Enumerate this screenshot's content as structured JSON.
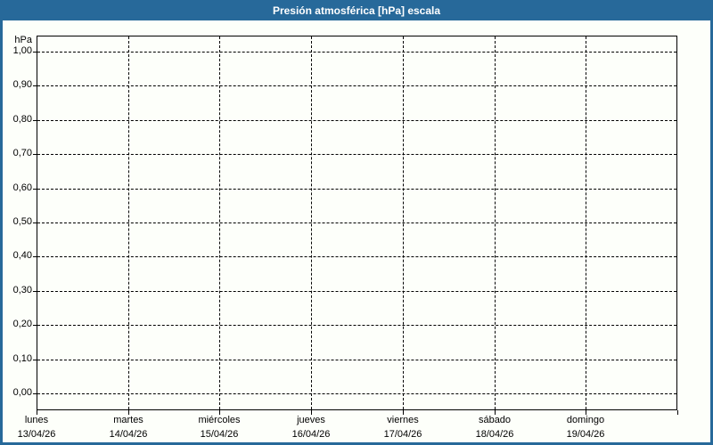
{
  "header": {
    "title": "Presión atmosférica [hPa] escala"
  },
  "colors": {
    "titlebar_background": "#27699A",
    "titlebar_text": "#FFFFFF",
    "panel_border": "#27699A",
    "page_background": "#FDFFFA",
    "grid": "#000000",
    "axis": "#000000",
    "label_text": "#000000"
  },
  "y_axis": {
    "unit": "hPa",
    "tick_labels": [
      "1,00",
      "0,90",
      "0,80",
      "0,70",
      "0,60",
      "0,50",
      "0,40",
      "0,30",
      "0,20",
      "0,10",
      "0,00"
    ]
  },
  "x_axis": {
    "days": [
      {
        "name": "lunes",
        "date": "13/04/26"
      },
      {
        "name": "martes",
        "date": "14/04/26"
      },
      {
        "name": "miércoles",
        "date": "15/04/26"
      },
      {
        "name": "jueves",
        "date": "16/04/26"
      },
      {
        "name": "viernes",
        "date": "17/04/26"
      },
      {
        "name": "sábado",
        "date": "18/04/26"
      },
      {
        "name": "domingo",
        "date": "19/04/26"
      }
    ]
  },
  "chart_data": {
    "type": "line",
    "title": "Presión atmosférica [hPa] escala",
    "xlabel": "",
    "ylabel": "hPa",
    "ylim": [
      0.0,
      1.0
    ],
    "y_ticks": [
      1.0,
      0.9,
      0.8,
      0.7,
      0.6,
      0.5,
      0.4,
      0.3,
      0.2,
      0.1,
      0.0
    ],
    "categories": [
      "lunes 13/04/26",
      "martes 14/04/26",
      "miércoles 15/04/26",
      "jueves 16/04/26",
      "viernes 17/04/26",
      "sábado 18/04/26",
      "domingo 19/04/26"
    ],
    "series": [],
    "grid": "dashed",
    "legend": "none"
  }
}
